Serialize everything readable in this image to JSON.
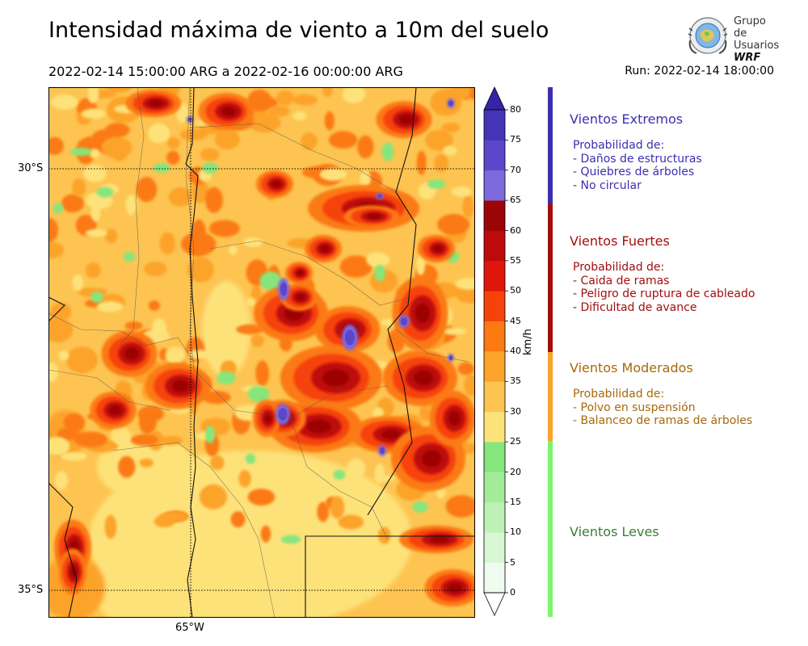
{
  "header": {
    "title": "Intensidad máxima de viento a 10m del suelo",
    "date_range": "2022-02-14 15:00:00 ARG  a  2022-02-16 00:00:00 ARG",
    "run": "Run: 2022-02-14 18:00:00"
  },
  "logo": {
    "line1": "Grupo de",
    "line2": "Usuarios",
    "line3": "WRF"
  },
  "map": {
    "lat_labels": [
      "30°S",
      "35°S"
    ],
    "lon_labels": [
      "65°W"
    ]
  },
  "colorbar": {
    "ticks": [
      "0",
      "5",
      "10",
      "15",
      "20",
      "25",
      "30",
      "35",
      "40",
      "45",
      "50",
      "55",
      "60",
      "65",
      "70",
      "75",
      "80"
    ],
    "unit": "km/h",
    "colors": [
      "#eefbee",
      "#d7f7d3",
      "#bdf2b5",
      "#a2ec99",
      "#86e57c",
      "#fde27a",
      "#fdc451",
      "#fca32a",
      "#fb7a12",
      "#f6430b",
      "#df160b",
      "#bd0a0b",
      "#9c0505",
      "#7d68dc",
      "#5a47c9",
      "#4634b7",
      "#3524a8"
    ]
  },
  "categories": [
    {
      "title": "Vientos Extremos",
      "color": "#3b2fb0",
      "lines": [
        "Probabilidad de:",
        "- Daños de estructuras",
        "- Quiebres de árboles",
        "- No circular"
      ]
    },
    {
      "title": "Vientos Fuertes",
      "color": "#a30e0e",
      "lines": [
        "Probabilidad de:",
        "- Caida de ramas",
        "- Peligro de ruptura de cableado",
        "- Dificultad de avance"
      ]
    },
    {
      "title": "Vientos Moderados",
      "color": "#a8680b",
      "lines": [
        "Probabilidad de:",
        "- Polvo en suspensión",
        "- Balanceo de ramas de árboles"
      ]
    },
    {
      "title": "Vientos Leves",
      "color": "#3a7d35",
      "lines": []
    }
  ],
  "legend_bar_colors": [
    "#3b2fb0",
    "#a30e0e",
    "#fca32a",
    "#7cf56e"
  ]
}
